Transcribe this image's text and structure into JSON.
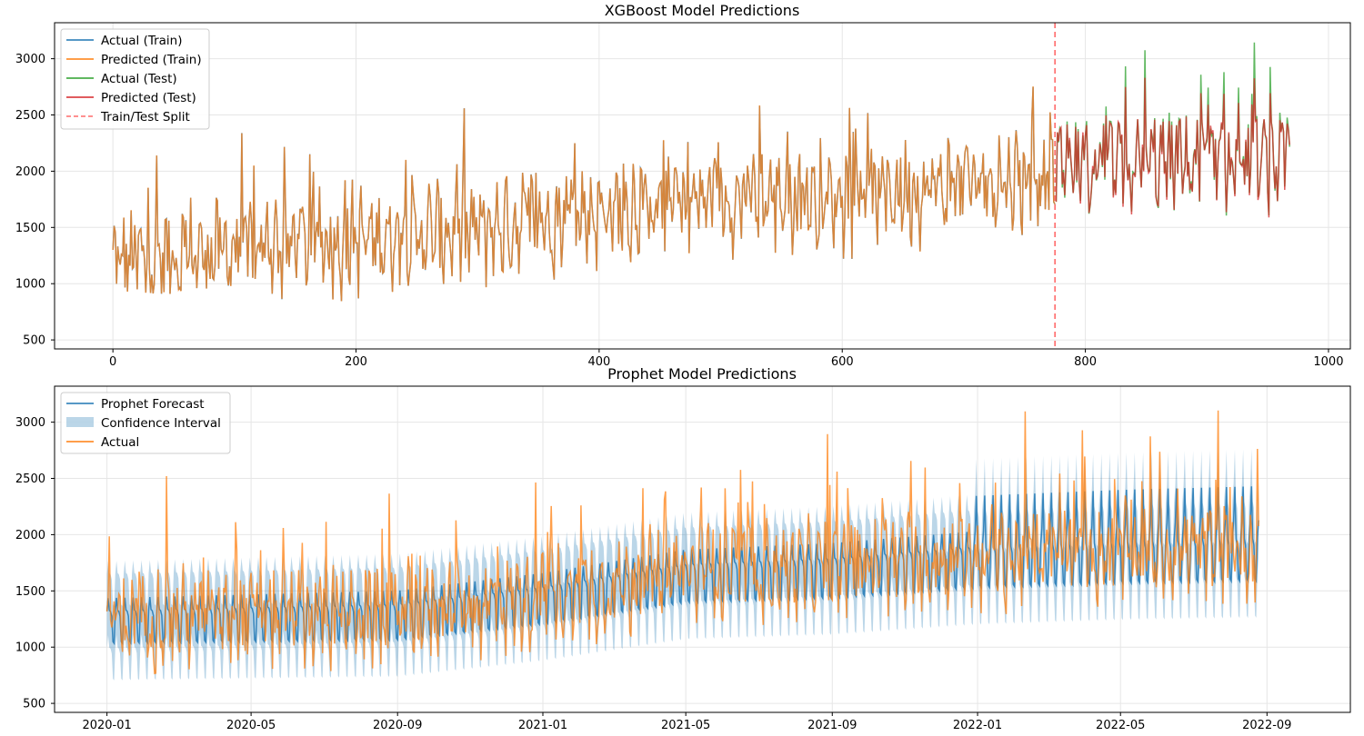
{
  "colors": {
    "blue": "#1f77b4",
    "orange": "#ff7f0e",
    "green": "#2ca02c",
    "red": "#d62728",
    "ci_fill": "#1f77b4"
  },
  "chart_data": [
    {
      "type": "line",
      "title": "XGBoost Model Predictions",
      "xlabel": "",
      "ylabel": "",
      "xlim": [
        -48,
        1018
      ],
      "ylim": [
        420,
        3320
      ],
      "x_ticks": [
        0,
        200,
        400,
        600,
        800,
        1000
      ],
      "x_tick_labels": [
        "0",
        "200",
        "400",
        "600",
        "800",
        "1000"
      ],
      "y_ticks": [
        500,
        1000,
        1500,
        2000,
        2500,
        3000
      ],
      "y_tick_labels": [
        "500",
        "1000",
        "1500",
        "2000",
        "2500",
        "3000"
      ],
      "grid": true,
      "legend": "upper-left",
      "train_test_split": 775,
      "series": [
        {
          "name": "Actual (Train)",
          "color": "#1f77b4",
          "style": "solid",
          "x_range": [
            0,
            775
          ],
          "anchors": [
            [
              0,
              1200
            ],
            [
              50,
              1250
            ],
            [
              100,
              1300
            ],
            [
              150,
              1350
            ],
            [
              200,
              1400
            ],
            [
              250,
              1430
            ],
            [
              300,
              1470
            ],
            [
              350,
              1560
            ],
            [
              400,
              1640
            ],
            [
              450,
              1700
            ],
            [
              500,
              1760
            ],
            [
              550,
              1780
            ],
            [
              600,
              1750
            ],
            [
              650,
              1830
            ],
            [
              700,
              1870
            ],
            [
              750,
              1950
            ],
            [
              775,
              1980
            ]
          ]
        },
        {
          "name": "Predicted (Train)",
          "color": "#ff7f0e",
          "style": "solid",
          "x_range": [
            0,
            775
          ],
          "anchors": [
            [
              0,
              1200
            ],
            [
              50,
              1250
            ],
            [
              100,
              1300
            ],
            [
              150,
              1350
            ],
            [
              200,
              1400
            ],
            [
              250,
              1430
            ],
            [
              300,
              1470
            ],
            [
              350,
              1560
            ],
            [
              400,
              1640
            ],
            [
              450,
              1700
            ],
            [
              500,
              1760
            ],
            [
              550,
              1780
            ],
            [
              600,
              1750
            ],
            [
              650,
              1830
            ],
            [
              700,
              1870
            ],
            [
              750,
              1950
            ],
            [
              775,
              1980
            ]
          ]
        },
        {
          "name": "Actual (Test)",
          "color": "#2ca02c",
          "style": "solid",
          "x_range": [
            776,
            968
          ],
          "anchors": [
            [
              776,
              2000
            ],
            [
              820,
              2050
            ],
            [
              870,
              2100
            ],
            [
              920,
              2050
            ],
            [
              968,
              2100
            ]
          ]
        },
        {
          "name": "Predicted (Test)",
          "color": "#d62728",
          "style": "solid",
          "x_range": [
            776,
            968
          ],
          "anchors": [
            [
              776,
              1980
            ],
            [
              820,
              2020
            ],
            [
              870,
              2060
            ],
            [
              920,
              2020
            ],
            [
              968,
              2060
            ]
          ]
        },
        {
          "name": "Train/Test Split",
          "color": "#ff6b6b",
          "style": "dashed"
        }
      ]
    },
    {
      "type": "line",
      "title": "Prophet Model Predictions",
      "xlabel": "",
      "ylabel": "",
      "xlim": [
        "2019-11-18",
        "2022-11-10"
      ],
      "ylim": [
        420,
        3320
      ],
      "x_ticks": [
        "2020-01",
        "2020-05",
        "2020-09",
        "2021-01",
        "2021-05",
        "2021-09",
        "2022-01",
        "2022-05",
        "2022-09"
      ],
      "y_ticks": [
        500,
        1000,
        1500,
        2000,
        2500,
        3000
      ],
      "y_tick_labels": [
        "500",
        "1000",
        "1500",
        "2000",
        "2500",
        "3000"
      ],
      "grid": true,
      "legend": "upper-left",
      "x_range": [
        "2020-01-01",
        "2022-08-25"
      ],
      "series": [
        {
          "name": "Prophet Forecast",
          "color": "#1f77b4",
          "anchors": [
            [
              "2020-01-01",
              1250
            ],
            [
              "2020-09-01",
              1300
            ],
            [
              "2021-01-01",
              1450
            ],
            [
              "2021-05-01",
              1650
            ],
            [
              "2021-09-01",
              1700
            ],
            [
              "2022-01-01",
              1800
            ],
            [
              "2022-05-01",
              1850
            ],
            [
              "2022-08-25",
              1880
            ]
          ]
        },
        {
          "name": "Confidence Interval",
          "color": "#1f77b4",
          "half_width": 330
        },
        {
          "name": "Actual",
          "color": "#ff7f0e"
        }
      ]
    }
  ],
  "legend1": {
    "items": [
      "Actual (Train)",
      "Predicted (Train)",
      "Actual (Test)",
      "Predicted (Test)",
      "Train/Test Split"
    ]
  },
  "legend2": {
    "items": [
      "Prophet Forecast",
      "Confidence Interval",
      "Actual"
    ]
  }
}
